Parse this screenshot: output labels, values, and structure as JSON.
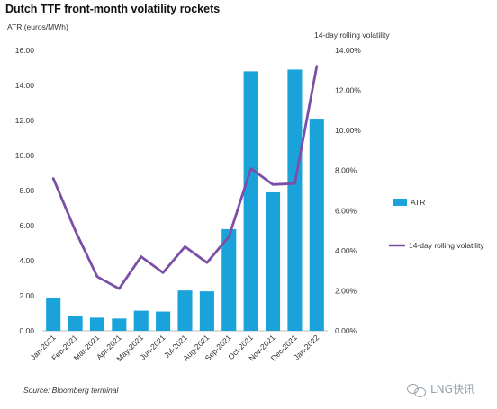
{
  "chart_data": {
    "type": "bar",
    "title": "Dutch TTF front-month volatility rockets",
    "y_left_label": "ATR (euros/MWh)",
    "y_right_label": "14-day rolling volatility",
    "categories": [
      "Jan-2021",
      "Feb-2021",
      "Mar-2021",
      "Apr-2021",
      "May-2021",
      "Jun-2021",
      "Jul-2021",
      "Aug-2021",
      "Sep-2021",
      "Oct-2021",
      "Nov-2021",
      "Dec-2021",
      "Jan-2022"
    ],
    "series": [
      {
        "name": "ATR",
        "type": "bar",
        "axis": "left",
        "color": "#1aa3db",
        "values": [
          1.9,
          0.85,
          0.75,
          0.7,
          1.15,
          1.1,
          2.3,
          2.25,
          5.8,
          14.8,
          7.9,
          14.9,
          12.1
        ]
      },
      {
        "name": "14-day rolling volatility",
        "type": "line",
        "axis": "right",
        "color": "#7b4fa6",
        "values": [
          7.6,
          5.0,
          2.7,
          2.1,
          3.7,
          2.9,
          4.2,
          3.4,
          4.7,
          8.1,
          7.3,
          7.35,
          13.2
        ]
      }
    ],
    "y_left": {
      "min": 0,
      "max": 16,
      "ticks": [
        "0.00",
        "2.00",
        "4.00",
        "6.00",
        "8.00",
        "10.00",
        "12.00",
        "14.00",
        "16.00"
      ]
    },
    "y_right": {
      "min": 0,
      "max": 14,
      "ticks": [
        "0.00%",
        "2.00%",
        "4.00%",
        "6.00%",
        "8.00%",
        "10.00%",
        "12.00%",
        "14.00%"
      ]
    },
    "grid": false,
    "legend_position": "right"
  },
  "source_text": "Source: Bloomberg terminal",
  "watermark_text": "LNG快讯"
}
